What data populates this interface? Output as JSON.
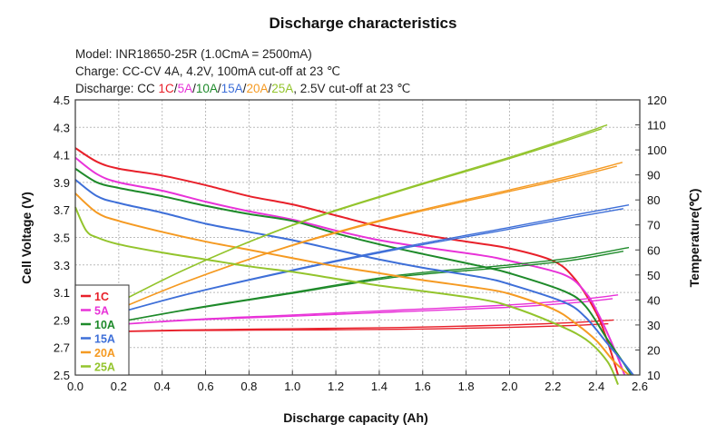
{
  "chart_data": {
    "type": "line",
    "title": "Discharge characteristics",
    "info_lines": [
      [
        {
          "text": "Model: INR18650-25R (1.0CmA = 2500mA)",
          "color": "#222222"
        }
      ],
      [
        {
          "text": "Charge: CC-CV 4A, 4.2V, 100mA cut-off at 23 ℃",
          "color": "#222222"
        }
      ],
      [
        {
          "text": "Discharge: CC ",
          "color": "#222222"
        },
        {
          "text": "1C",
          "color": "#e8202a"
        },
        {
          "text": "/",
          "color": "#222222"
        },
        {
          "text": "5A",
          "color": "#e832d8"
        },
        {
          "text": "/",
          "color": "#222222"
        },
        {
          "text": "10A",
          "color": "#1e8a2a"
        },
        {
          "text": "/",
          "color": "#222222"
        },
        {
          "text": "15A",
          "color": "#3e6fd8"
        },
        {
          "text": "/",
          "color": "#222222"
        },
        {
          "text": "20A",
          "color": "#f59a22"
        },
        {
          "text": "/",
          "color": "#222222"
        },
        {
          "text": "25A",
          "color": "#93c42c"
        },
        {
          "text": ", 2.5V cut-off at 23 ℃",
          "color": "#222222"
        }
      ]
    ],
    "xlabel": "Discharge capacity (Ah)",
    "ylabel": "Cell Voltage (V)",
    "y2label": "Temperature(℃)",
    "xlim": [
      0,
      2.6
    ],
    "ylim": [
      2.5,
      4.5
    ],
    "y2lim": [
      10,
      120
    ],
    "xticks": [
      "0.0",
      "0.2",
      "0.4",
      "0.6",
      "0.8",
      "1.0",
      "1.2",
      "1.4",
      "1.6",
      "1.8",
      "2.0",
      "2.2",
      "2.4",
      "2.6"
    ],
    "yticks": [
      "2.5",
      "2.7",
      "2.9",
      "3.1",
      "3.3",
      "3.5",
      "3.7",
      "3.9",
      "4.1",
      "4.3",
      "4.5"
    ],
    "y2ticks": [
      "10",
      "20",
      "30",
      "40",
      "50",
      "60",
      "70",
      "80",
      "90",
      "100",
      "110",
      "120"
    ],
    "grid": true,
    "legend_position": "bottom-left",
    "series": [
      {
        "name": "1C",
        "color": "#e8202a",
        "voltage": [
          [
            0,
            4.15
          ],
          [
            0.1,
            4.05
          ],
          [
            0.2,
            4.0
          ],
          [
            0.4,
            3.95
          ],
          [
            0.6,
            3.88
          ],
          [
            0.8,
            3.8
          ],
          [
            1.0,
            3.74
          ],
          [
            1.2,
            3.66
          ],
          [
            1.4,
            3.58
          ],
          [
            1.6,
            3.52
          ],
          [
            1.8,
            3.47
          ],
          [
            2.0,
            3.42
          ],
          [
            2.2,
            3.33
          ],
          [
            2.3,
            3.2
          ],
          [
            2.4,
            2.95
          ],
          [
            2.45,
            2.75
          ],
          [
            2.5,
            2.5
          ]
        ],
        "temperature": [
          [
            0,
            27
          ],
          [
            0.5,
            28
          ],
          [
            1.0,
            28.5
          ],
          [
            1.5,
            29
          ],
          [
            2.0,
            30
          ],
          [
            2.3,
            31
          ],
          [
            2.48,
            32
          ]
        ]
      },
      {
        "name": "5A",
        "color": "#e832d8",
        "voltage": [
          [
            0,
            4.08
          ],
          [
            0.1,
            3.96
          ],
          [
            0.2,
            3.9
          ],
          [
            0.4,
            3.84
          ],
          [
            0.6,
            3.76
          ],
          [
            0.8,
            3.69
          ],
          [
            1.0,
            3.63
          ],
          [
            1.2,
            3.55
          ],
          [
            1.4,
            3.48
          ],
          [
            1.6,
            3.43
          ],
          [
            1.87,
            3.37
          ],
          [
            2.0,
            3.33
          ],
          [
            2.25,
            3.23
          ],
          [
            2.35,
            3.1
          ],
          [
            2.41,
            2.94
          ],
          [
            2.48,
            2.7
          ],
          [
            2.53,
            2.5
          ]
        ],
        "temperature": [
          [
            0,
            29
          ],
          [
            0.5,
            32
          ],
          [
            1.0,
            34
          ],
          [
            1.5,
            36
          ],
          [
            2.0,
            38
          ],
          [
            2.3,
            40
          ],
          [
            2.5,
            42
          ]
        ]
      },
      {
        "name": "10A",
        "color": "#1e8a2a",
        "voltage": [
          [
            0,
            4.0
          ],
          [
            0.1,
            3.9
          ],
          [
            0.2,
            3.86
          ],
          [
            0.4,
            3.8
          ],
          [
            0.6,
            3.73
          ],
          [
            0.8,
            3.67
          ],
          [
            1.0,
            3.62
          ],
          [
            1.2,
            3.53
          ],
          [
            1.4,
            3.45
          ],
          [
            1.6,
            3.38
          ],
          [
            1.87,
            3.29
          ],
          [
            2.0,
            3.24
          ],
          [
            2.25,
            3.11
          ],
          [
            2.35,
            3.0
          ],
          [
            2.45,
            2.76
          ],
          [
            2.52,
            2.6
          ],
          [
            2.56,
            2.5
          ]
        ],
        "temperature": [
          [
            0,
            28
          ],
          [
            0.5,
            36
          ],
          [
            1.0,
            43
          ],
          [
            1.5,
            50
          ],
          [
            2.0,
            54
          ],
          [
            2.3,
            57
          ],
          [
            2.55,
            61
          ]
        ]
      },
      {
        "name": "15A",
        "color": "#3e6fd8",
        "voltage": [
          [
            0,
            3.92
          ],
          [
            0.1,
            3.8
          ],
          [
            0.2,
            3.75
          ],
          [
            0.4,
            3.68
          ],
          [
            0.6,
            3.6
          ],
          [
            0.8,
            3.54
          ],
          [
            1.0,
            3.48
          ],
          [
            1.2,
            3.41
          ],
          [
            1.4,
            3.34
          ],
          [
            1.6,
            3.28
          ],
          [
            1.87,
            3.21
          ],
          [
            2.0,
            3.16
          ],
          [
            2.25,
            3.03
          ],
          [
            2.35,
            2.92
          ],
          [
            2.45,
            2.73
          ],
          [
            2.52,
            2.6
          ],
          [
            2.57,
            2.5
          ]
        ],
        "temperature": [
          [
            0,
            30
          ],
          [
            0.5,
            42
          ],
          [
            1.0,
            52
          ],
          [
            1.5,
            61
          ],
          [
            2.0,
            69
          ],
          [
            2.3,
            74
          ],
          [
            2.55,
            78
          ]
        ]
      },
      {
        "name": "20A",
        "color": "#f59a22",
        "voltage": [
          [
            0,
            3.82
          ],
          [
            0.1,
            3.68
          ],
          [
            0.2,
            3.62
          ],
          [
            0.4,
            3.54
          ],
          [
            0.6,
            3.47
          ],
          [
            0.8,
            3.41
          ],
          [
            1.0,
            3.35
          ],
          [
            1.2,
            3.29
          ],
          [
            1.4,
            3.24
          ],
          [
            1.6,
            3.19
          ],
          [
            1.87,
            3.13
          ],
          [
            2.0,
            3.09
          ],
          [
            2.2,
            2.98
          ],
          [
            2.3,
            2.88
          ],
          [
            2.4,
            2.75
          ],
          [
            2.48,
            2.6
          ],
          [
            2.55,
            2.5
          ]
        ],
        "temperature": [
          [
            0,
            29
          ],
          [
            0.5,
            47
          ],
          [
            1.0,
            62
          ],
          [
            1.5,
            74
          ],
          [
            2.0,
            84
          ],
          [
            2.3,
            90
          ],
          [
            2.52,
            95
          ]
        ]
      },
      {
        "name": "25A",
        "color": "#93c42c",
        "voltage": [
          [
            0,
            3.72
          ],
          [
            0.05,
            3.55
          ],
          [
            0.1,
            3.5
          ],
          [
            0.2,
            3.45
          ],
          [
            0.4,
            3.39
          ],
          [
            0.6,
            3.34
          ],
          [
            0.8,
            3.29
          ],
          [
            1.0,
            3.25
          ],
          [
            1.2,
            3.2
          ],
          [
            1.4,
            3.15
          ],
          [
            1.6,
            3.11
          ],
          [
            1.87,
            3.05
          ],
          [
            2.0,
            3.0
          ],
          [
            2.2,
            2.88
          ],
          [
            2.35,
            2.76
          ],
          [
            2.45,
            2.6
          ],
          [
            2.5,
            2.43
          ]
        ],
        "temperature": [
          [
            0,
            30
          ],
          [
            0.5,
            52
          ],
          [
            1.0,
            70
          ],
          [
            1.5,
            84
          ],
          [
            2.0,
            97
          ],
          [
            2.25,
            104
          ],
          [
            2.45,
            110
          ]
        ]
      }
    ]
  }
}
